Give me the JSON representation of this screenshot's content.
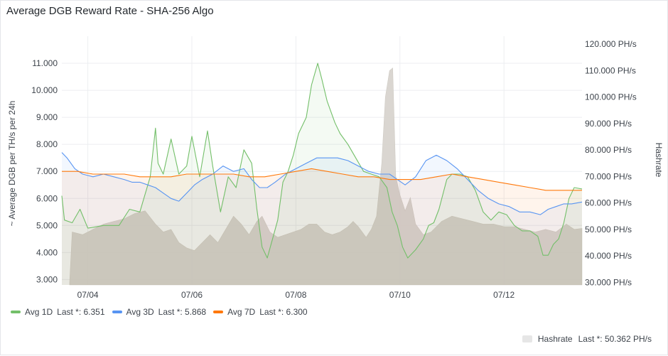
{
  "panel": {
    "title": "Average DGB Reward Rate - SHA-256 Algo"
  },
  "chart_data": {
    "type": "line",
    "x_ticks": [
      "07/04",
      "07/06",
      "07/08",
      "07/10",
      "07/12"
    ],
    "x_range_days": [
      3.5,
      13.5
    ],
    "y_left": {
      "label": "~ Average DGB per TH/s per 24h",
      "ticks": [
        "3.000",
        "4.000",
        "5.000",
        "6.000",
        "7.000",
        "8.000",
        "9.000",
        "10.000",
        "11.000"
      ],
      "range": [
        2.8,
        12.0
      ]
    },
    "y_right": {
      "label": "Hashrate",
      "ticks": [
        "30.000 PH/s",
        "40.000 PH/s",
        "50.000 PH/s",
        "60.000 PH/s",
        "70.000 PH/s",
        "80.000 PH/s",
        "90.000 PH/s",
        "100.000 PH/s",
        "110.000 PH/s",
        "120.000 PH/s"
      ],
      "range": [
        29,
        123
      ]
    },
    "series": [
      {
        "name": "Avg 1D",
        "color": "#73bf69",
        "axis": "left",
        "last_label": "Last *:",
        "last": "6.351",
        "points": [
          [
            3.5,
            6.1
          ],
          [
            3.55,
            5.2
          ],
          [
            3.7,
            5.1
          ],
          [
            3.85,
            5.6
          ],
          [
            4.0,
            4.9
          ],
          [
            4.3,
            5.0
          ],
          [
            4.6,
            5.0
          ],
          [
            4.8,
            5.6
          ],
          [
            5.0,
            5.5
          ],
          [
            5.2,
            6.8
          ],
          [
            5.3,
            8.6
          ],
          [
            5.35,
            7.3
          ],
          [
            5.45,
            6.9
          ],
          [
            5.6,
            8.2
          ],
          [
            5.75,
            6.9
          ],
          [
            5.9,
            7.2
          ],
          [
            6.0,
            8.3
          ],
          [
            6.15,
            6.8
          ],
          [
            6.3,
            8.5
          ],
          [
            6.4,
            7.2
          ],
          [
            6.55,
            5.5
          ],
          [
            6.7,
            6.8
          ],
          [
            6.85,
            6.4
          ],
          [
            7.0,
            7.8
          ],
          [
            7.15,
            7.3
          ],
          [
            7.25,
            5.6
          ],
          [
            7.35,
            4.2
          ],
          [
            7.45,
            3.8
          ],
          [
            7.55,
            4.5
          ],
          [
            7.65,
            5.2
          ],
          [
            7.75,
            6.6
          ],
          [
            7.85,
            7.0
          ],
          [
            7.95,
            7.6
          ],
          [
            8.05,
            8.4
          ],
          [
            8.2,
            9.0
          ],
          [
            8.3,
            10.2
          ],
          [
            8.42,
            11.0
          ],
          [
            8.5,
            10.4
          ],
          [
            8.6,
            9.6
          ],
          [
            8.75,
            8.8
          ],
          [
            8.85,
            8.4
          ],
          [
            9.0,
            8.0
          ],
          [
            9.15,
            7.5
          ],
          [
            9.3,
            7.0
          ],
          [
            9.45,
            6.9
          ],
          [
            9.6,
            6.8
          ],
          [
            9.75,
            6.4
          ],
          [
            9.85,
            5.5
          ],
          [
            9.95,
            5.0
          ],
          [
            10.05,
            4.2
          ],
          [
            10.15,
            3.8
          ],
          [
            10.3,
            4.1
          ],
          [
            10.45,
            4.5
          ],
          [
            10.55,
            5.0
          ],
          [
            10.65,
            5.1
          ],
          [
            10.75,
            5.6
          ],
          [
            10.9,
            6.7
          ],
          [
            11.0,
            6.9
          ],
          [
            11.15,
            6.9
          ],
          [
            11.3,
            6.8
          ],
          [
            11.45,
            6.3
          ],
          [
            11.6,
            5.5
          ],
          [
            11.75,
            5.2
          ],
          [
            11.9,
            5.5
          ],
          [
            12.05,
            5.4
          ],
          [
            12.2,
            5.0
          ],
          [
            12.35,
            4.8
          ],
          [
            12.5,
            4.8
          ],
          [
            12.65,
            4.6
          ],
          [
            12.75,
            3.9
          ],
          [
            12.85,
            3.9
          ],
          [
            12.95,
            4.3
          ],
          [
            13.05,
            4.5
          ],
          [
            13.15,
            5.1
          ],
          [
            13.25,
            6.0
          ],
          [
            13.35,
            6.4
          ],
          [
            13.5,
            6.351
          ]
        ]
      },
      {
        "name": "Avg 3D",
        "color": "#5794f2",
        "axis": "left",
        "last_label": "Last *:",
        "last": "5.868",
        "points": [
          [
            3.5,
            7.7
          ],
          [
            3.6,
            7.5
          ],
          [
            3.75,
            7.1
          ],
          [
            3.9,
            6.9
          ],
          [
            4.1,
            6.8
          ],
          [
            4.3,
            6.9
          ],
          [
            4.5,
            6.8
          ],
          [
            4.7,
            6.7
          ],
          [
            4.85,
            6.6
          ],
          [
            5.0,
            6.6
          ],
          [
            5.15,
            6.5
          ],
          [
            5.3,
            6.4
          ],
          [
            5.45,
            6.2
          ],
          [
            5.6,
            6.0
          ],
          [
            5.75,
            5.9
          ],
          [
            5.9,
            6.2
          ],
          [
            6.05,
            6.5
          ],
          [
            6.2,
            6.7
          ],
          [
            6.4,
            6.9
          ],
          [
            6.6,
            7.2
          ],
          [
            6.8,
            7.0
          ],
          [
            7.0,
            7.1
          ],
          [
            7.15,
            6.7
          ],
          [
            7.3,
            6.4
          ],
          [
            7.45,
            6.4
          ],
          [
            7.6,
            6.6
          ],
          [
            7.8,
            6.9
          ],
          [
            8.0,
            7.1
          ],
          [
            8.2,
            7.3
          ],
          [
            8.4,
            7.5
          ],
          [
            8.6,
            7.5
          ],
          [
            8.8,
            7.5
          ],
          [
            9.0,
            7.4
          ],
          [
            9.2,
            7.2
          ],
          [
            9.4,
            7.0
          ],
          [
            9.6,
            6.9
          ],
          [
            9.8,
            6.9
          ],
          [
            9.95,
            6.7
          ],
          [
            10.1,
            6.5
          ],
          [
            10.3,
            6.8
          ],
          [
            10.5,
            7.4
          ],
          [
            10.7,
            7.6
          ],
          [
            10.9,
            7.4
          ],
          [
            11.1,
            7.1
          ],
          [
            11.3,
            6.7
          ],
          [
            11.5,
            6.3
          ],
          [
            11.7,
            6.0
          ],
          [
            11.9,
            5.8
          ],
          [
            12.1,
            5.7
          ],
          [
            12.3,
            5.5
          ],
          [
            12.5,
            5.5
          ],
          [
            12.7,
            5.4
          ],
          [
            12.85,
            5.6
          ],
          [
            13.0,
            5.7
          ],
          [
            13.15,
            5.8
          ],
          [
            13.3,
            5.8
          ],
          [
            13.5,
            5.868
          ]
        ]
      },
      {
        "name": "Avg 7D",
        "color": "#ff780a",
        "axis": "left",
        "last_label": "Last *:",
        "last": "6.300",
        "points": [
          [
            3.5,
            7.0
          ],
          [
            3.8,
            7.0
          ],
          [
            4.1,
            6.9
          ],
          [
            4.4,
            6.9
          ],
          [
            4.7,
            6.9
          ],
          [
            5.0,
            6.8
          ],
          [
            5.3,
            6.8
          ],
          [
            5.6,
            6.8
          ],
          [
            5.9,
            6.9
          ],
          [
            6.2,
            6.9
          ],
          [
            6.5,
            6.9
          ],
          [
            6.8,
            6.9
          ],
          [
            7.1,
            6.8
          ],
          [
            7.4,
            6.8
          ],
          [
            7.7,
            6.9
          ],
          [
            8.0,
            7.0
          ],
          [
            8.3,
            7.1
          ],
          [
            8.6,
            7.0
          ],
          [
            8.9,
            6.9
          ],
          [
            9.2,
            6.8
          ],
          [
            9.5,
            6.8
          ],
          [
            9.8,
            6.7
          ],
          [
            10.1,
            6.7
          ],
          [
            10.4,
            6.7
          ],
          [
            10.7,
            6.8
          ],
          [
            11.0,
            6.9
          ],
          [
            11.3,
            6.8
          ],
          [
            11.6,
            6.7
          ],
          [
            11.9,
            6.6
          ],
          [
            12.2,
            6.5
          ],
          [
            12.5,
            6.4
          ],
          [
            12.8,
            6.3
          ],
          [
            13.1,
            6.3
          ],
          [
            13.5,
            6.3
          ]
        ]
      },
      {
        "name": "Hashrate",
        "color": "#d3d3d3",
        "axis": "right",
        "last_label": "Last *:",
        "last": "50.362 PH/s",
        "points": [
          [
            3.65,
            30
          ],
          [
            3.7,
            49
          ],
          [
            3.9,
            48
          ],
          [
            4.1,
            50
          ],
          [
            4.3,
            52
          ],
          [
            4.5,
            53
          ],
          [
            4.7,
            54
          ],
          [
            4.9,
            56
          ],
          [
            5.1,
            57
          ],
          [
            5.3,
            52
          ],
          [
            5.45,
            49
          ],
          [
            5.6,
            50
          ],
          [
            5.75,
            45
          ],
          [
            5.9,
            43
          ],
          [
            6.05,
            42
          ],
          [
            6.2,
            45
          ],
          [
            6.35,
            48
          ],
          [
            6.5,
            45
          ],
          [
            6.65,
            50
          ],
          [
            6.8,
            55
          ],
          [
            6.95,
            52
          ],
          [
            7.1,
            48
          ],
          [
            7.25,
            53
          ],
          [
            7.35,
            55
          ],
          [
            7.5,
            49
          ],
          [
            7.65,
            47
          ],
          [
            7.8,
            48
          ],
          [
            7.95,
            49
          ],
          [
            8.1,
            50
          ],
          [
            8.25,
            52
          ],
          [
            8.4,
            52
          ],
          [
            8.55,
            49
          ],
          [
            8.7,
            48
          ],
          [
            8.85,
            49
          ],
          [
            9.0,
            51
          ],
          [
            9.1,
            53
          ],
          [
            9.2,
            51
          ],
          [
            9.35,
            47
          ],
          [
            9.45,
            50
          ],
          [
            9.55,
            55
          ],
          [
            9.65,
            75
          ],
          [
            9.72,
            100
          ],
          [
            9.8,
            110
          ],
          [
            9.86,
            111
          ],
          [
            9.92,
            70
          ],
          [
            10.0,
            63
          ],
          [
            10.1,
            57
          ],
          [
            10.2,
            62
          ],
          [
            10.3,
            52
          ],
          [
            10.45,
            48
          ],
          [
            10.6,
            49
          ],
          [
            10.8,
            53
          ],
          [
            11.0,
            55
          ],
          [
            11.2,
            54
          ],
          [
            11.4,
            53
          ],
          [
            11.6,
            52
          ],
          [
            11.8,
            52
          ],
          [
            12.0,
            51
          ],
          [
            12.2,
            51
          ],
          [
            12.4,
            50
          ],
          [
            12.6,
            49
          ],
          [
            12.8,
            50
          ],
          [
            13.0,
            49
          ],
          [
            13.2,
            52
          ],
          [
            13.35,
            50
          ],
          [
            13.5,
            50.362
          ]
        ]
      }
    ],
    "grid": true,
    "legend_position": "bottom"
  },
  "legend": {
    "items": [
      {
        "name": "Avg 1D",
        "last": "Last *: 6.351",
        "color": "#73bf69"
      },
      {
        "name": "Avg 3D",
        "last": "Last *: 5.868",
        "color": "#5794f2"
      },
      {
        "name": "Avg 7D",
        "last": "Last *: 6.300",
        "color": "#ff780a"
      }
    ],
    "hashrate": {
      "name": "Hashrate",
      "last": "Last *: 50.362 PH/s"
    }
  }
}
